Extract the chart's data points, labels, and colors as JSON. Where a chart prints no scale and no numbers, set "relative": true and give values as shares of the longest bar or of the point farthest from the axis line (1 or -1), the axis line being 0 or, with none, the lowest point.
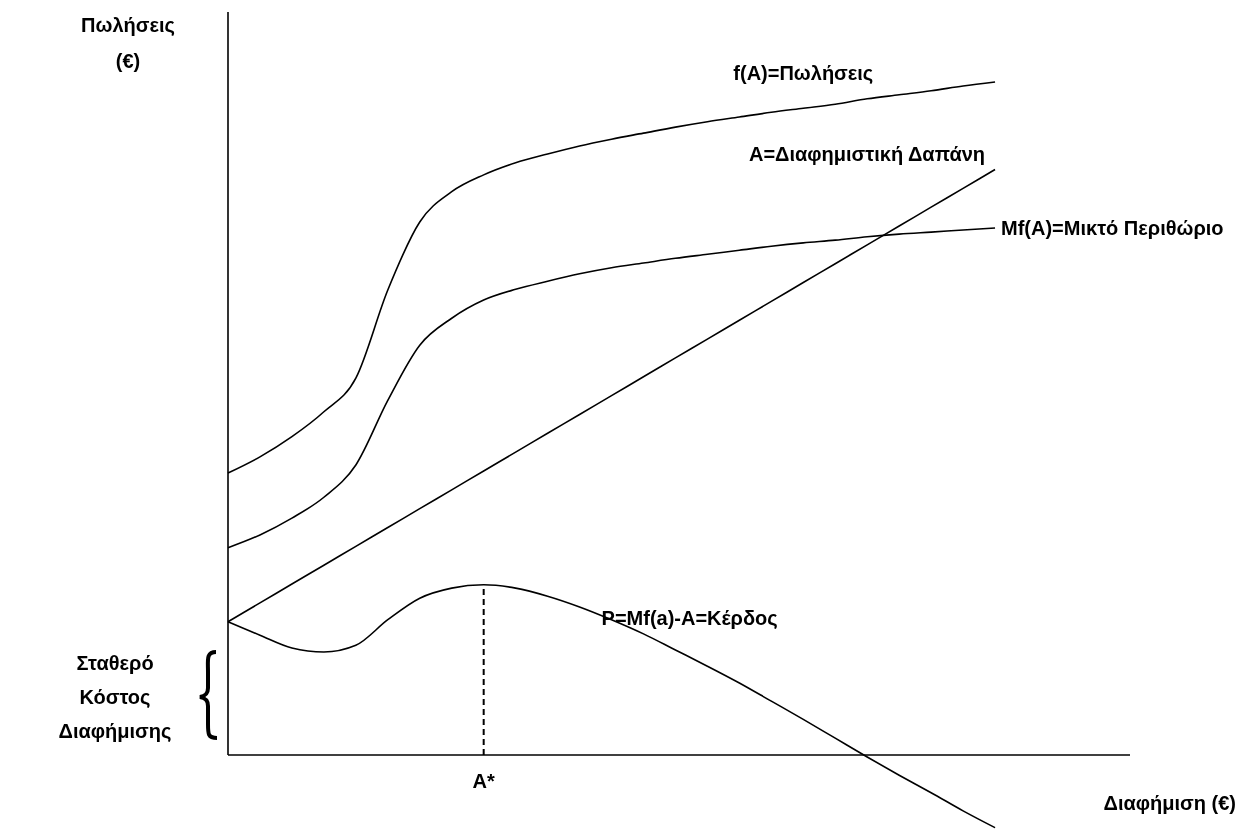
{
  "chart_data": {
    "type": "line",
    "relative": true,
    "xlabel": "Διαφήμιση (€)",
    "ylabel": "Πωλήσεις (€)",
    "categories": [
      null,
      null,
      null,
      null,
      null,
      null,
      null,
      null,
      null,
      null,
      null,
      null,
      null,
      null,
      null,
      null,
      null,
      null,
      null,
      null,
      null,
      null,
      null,
      null,
      null
    ],
    "series": [
      {
        "name": "f(A)=Πωλήσεις",
        "color": "#000000",
        "values": [
          0.419,
          0.443,
          0.473,
          0.51,
          0.56,
          0.691,
          0.792,
          0.837,
          0.862,
          0.88,
          0.893,
          0.905,
          0.915,
          0.924,
          0.933,
          0.941,
          0.948,
          0.955,
          0.961,
          0.967,
          0.975,
          0.981,
          0.987,
          0.994,
          1
        ]
      },
      {
        "name": "A=Διαφημιστική Δαπάνη",
        "color": "#000000",
        "values": [
          0.198,
          0.226,
          0.254,
          0.282,
          0.31,
          0.338,
          0.366,
          0.394,
          0.422,
          0.45,
          0.478,
          0.506,
          0.534,
          0.562,
          0.59,
          0.618,
          0.646,
          0.674,
          0.702,
          0.73,
          0.758,
          0.786,
          0.814,
          0.842,
          0.87
        ]
      },
      {
        "name": "Mf(A)=Μικτό Περιθώριο",
        "color": "#000000",
        "values": [
          0.308,
          0.327,
          0.352,
          0.383,
          0.431,
          0.527,
          0.609,
          0.649,
          0.676,
          0.692,
          0.704,
          0.715,
          0.724,
          0.731,
          0.738,
          0.744,
          0.75,
          0.756,
          0.761,
          0.765,
          0.77,
          0.774,
          0.777,
          0.78,
          0.783
        ]
      },
      {
        "name": "P=Mf(a)-A=Κέρδος",
        "color": "#000000",
        "values": [
          0.198,
          0.178,
          0.159,
          0.153,
          0.163,
          0.201,
          0.233,
          0.248,
          0.253,
          0.248,
          0.236,
          0.22,
          0.201,
          0.18,
          0.156,
          0.132,
          0.107,
          0.08,
          0.053,
          0.025,
          -0.003,
          -0.03,
          -0.056,
          -0.083,
          -0.108
        ]
      }
    ],
    "annotations": [
      "Σταθερό Κόστος Διαφήμισης",
      "A*"
    ],
    "marker": "none",
    "line_style": "solid"
  }
}
